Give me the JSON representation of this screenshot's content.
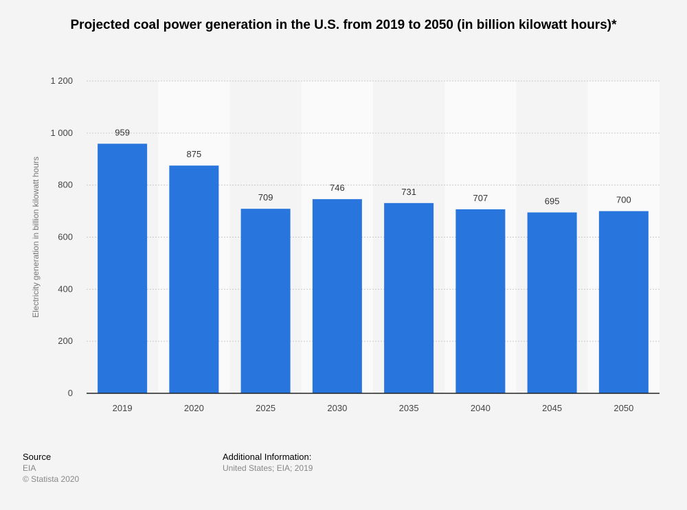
{
  "title": "Projected coal power generation in the U.S. from 2019 to 2050 (in billion kilowatt hours)*",
  "footer": {
    "source_label": "Source",
    "source_value": "EIA",
    "copyright": "© Statista 2020",
    "additional_label": "Additional Information:",
    "additional_value": "United States; EIA; 2019"
  },
  "chart_data": {
    "type": "bar",
    "title": "Projected coal power generation in the U.S. from 2019 to 2050 (in billion kilowatt hours)*",
    "xlabel": "",
    "ylabel": "Electricity generation in billion kilowatt hours",
    "categories": [
      "2019",
      "2020",
      "2025",
      "2030",
      "2035",
      "2040",
      "2045",
      "2050"
    ],
    "values": [
      959,
      875,
      709,
      746,
      731,
      707,
      695,
      700
    ],
    "ylim": [
      0,
      1200
    ],
    "yticks": [
      0,
      200,
      400,
      600,
      800,
      1000,
      1200
    ],
    "ytick_labels": [
      "0",
      "200",
      "400",
      "600",
      "800",
      "1 000",
      "1 200"
    ],
    "grid": true,
    "legend": "none",
    "bar_color": "#2876dd"
  }
}
